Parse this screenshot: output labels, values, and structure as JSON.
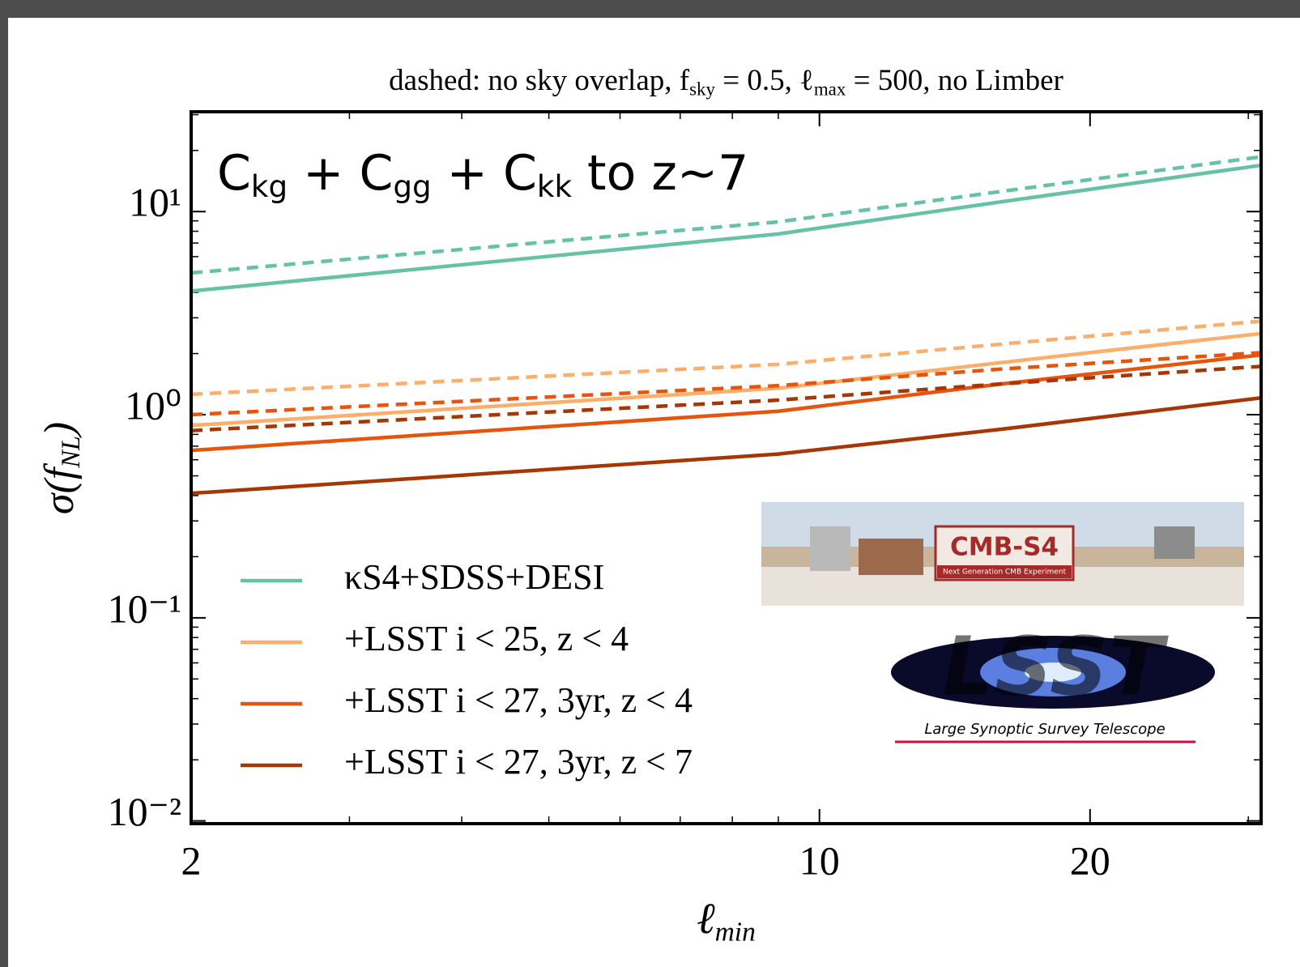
{
  "chart_data": {
    "type": "line",
    "title": [
      "dashed: no sky overlap, ",
      "f",
      "sky",
      " = 0.5, ",
      "ℓ",
      "max",
      " = 500, no Limber"
    ],
    "annotation": [
      "C",
      "kg",
      " + C",
      "gg",
      " + C",
      "kk",
      " to z~7"
    ],
    "xlabel": [
      "ℓ",
      "min"
    ],
    "ylabel": [
      "σ(",
      "f",
      "NL",
      ")"
    ],
    "log_x": true,
    "log_y": true,
    "xlim": [
      2,
      31
    ],
    "ylim": [
      0.0097,
      31
    ],
    "xticks": [
      2,
      10,
      20
    ],
    "xminor_ticks": [
      3,
      4,
      5,
      6,
      7,
      8,
      9,
      30
    ],
    "yticks": [
      {
        "value": 10,
        "label": "10¹"
      },
      {
        "value": 1,
        "label": "10⁰"
      },
      {
        "value": 0.1,
        "label": "10⁻¹"
      },
      {
        "value": 0.01,
        "label": "10⁻²"
      }
    ],
    "yminor_ticks": [
      0.02,
      0.03,
      0.04,
      0.05,
      0.06,
      0.07,
      0.08,
      0.09,
      0.2,
      0.3,
      0.4,
      0.5,
      0.6,
      0.7,
      0.8,
      0.9,
      2,
      3,
      4,
      5,
      6,
      7,
      8,
      9,
      20,
      30
    ],
    "x": [
      2,
      9,
      16,
      31
    ],
    "legend": "lower left",
    "series": [
      {
        "name": "κS4+SDSS+DESI",
        "color": "#66c2a5",
        "values": [
          4.06,
          7.76,
          11.2,
          16.9
        ],
        "dashed_values": [
          4.99,
          8.9,
          12.6,
          18.6
        ]
      },
      {
        "name": "+LSST i < 25, z < 4",
        "color": "#fdae6b",
        "values": [
          0.885,
          1.35,
          1.81,
          2.51
        ],
        "dashed_values": [
          1.26,
          1.77,
          2.23,
          2.89
        ]
      },
      {
        "name": "+LSST i < 27, 3yr, z < 4",
        "color": "#e6550d",
        "values": [
          0.667,
          1.04,
          1.42,
          1.97
        ],
        "dashed_values": [
          1.0,
          1.39,
          1.68,
          2.02
        ]
      },
      {
        "name": "+LSST i < 27, 3yr, z < 7",
        "color": "#a63603",
        "values": [
          0.41,
          0.64,
          0.85,
          1.21
        ],
        "dashed_values": [
          0.835,
          1.18,
          1.42,
          1.73
        ]
      }
    ]
  },
  "logos": {
    "cmb": {
      "title": "CMB-S4",
      "subtitle": "Next Generation CMB Experiment"
    },
    "lsst": {
      "title": "LSST",
      "subtitle": "Large Synoptic Survey Telescope"
    }
  }
}
